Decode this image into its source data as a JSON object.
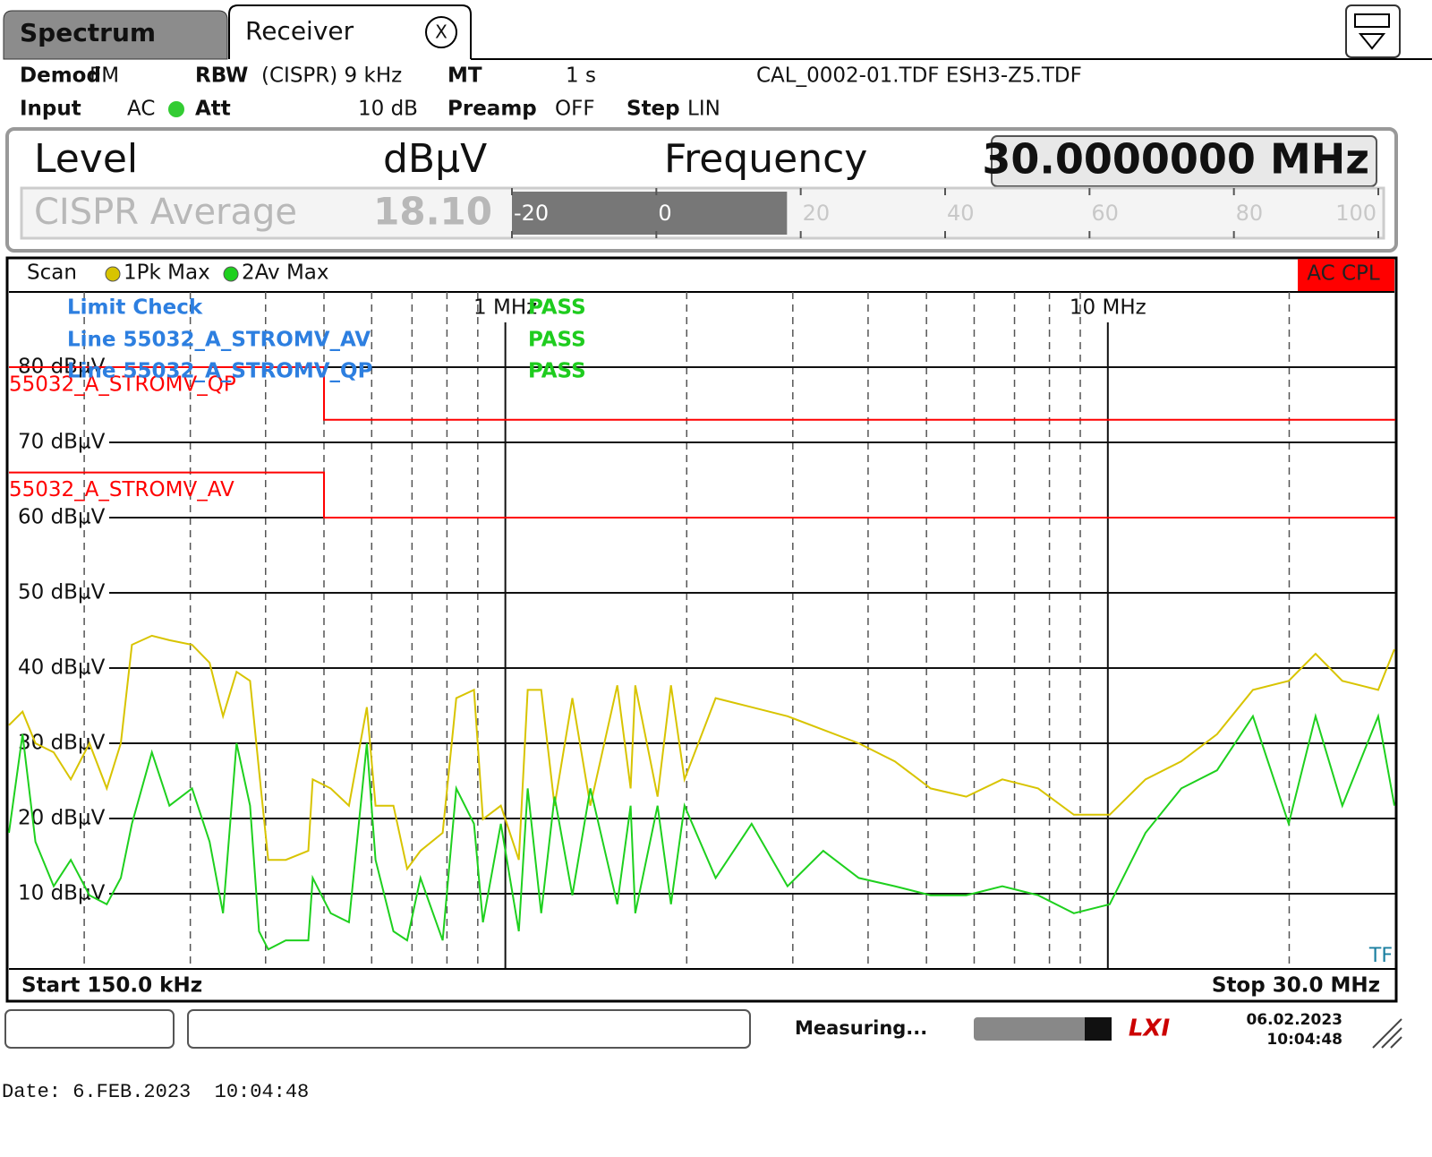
{
  "tabs": {
    "active": "Receiver",
    "inactive": "Spectrum",
    "close": "X"
  },
  "header": {
    "items": [
      {
        "key": "Demod",
        "value": "FM"
      },
      {
        "key": "RBW",
        "value": "(CISPR) 9 kHz"
      },
      {
        "key": "MT",
        "value": "1 s"
      },
      {
        "key": "Input",
        "value": "AC"
      },
      {
        "key": "Att",
        "value": "10 dB"
      },
      {
        "key": "Preamp",
        "value": "OFF"
      },
      {
        "key": "Step",
        "value": "LIN"
      }
    ],
    "files": "CAL_0002-01.TDF ESH3-Z5.TDF"
  },
  "level": {
    "title": "Level",
    "unit": "dBµV",
    "frequency_label": "Frequency",
    "frequency": "30.0000000 MHz",
    "detector": "CISPR Average",
    "value": 18.1,
    "value_label": "18.10",
    "bar_ticks": [
      -20,
      0,
      20,
      40,
      60,
      80,
      100
    ]
  },
  "chart_data": {
    "type": "line",
    "scan_label": "Scan",
    "badge": "AC CPL",
    "corner_label": "TF",
    "start_label": "Start 150.0 kHz",
    "stop_label": "Stop 30.0 MHz",
    "xlim": [
      0.15,
      30
    ],
    "log_x": true,
    "ylim": [
      0,
      90
    ],
    "xticks": [
      {
        "value": 1,
        "label": "1 MHz"
      },
      {
        "value": 10,
        "label": "10 MHz"
      }
    ],
    "x_minor_ticks": [
      0.2,
      0.3,
      0.4,
      0.5,
      0.6,
      0.7,
      0.8,
      0.9,
      2,
      3,
      4,
      5,
      6,
      7,
      8,
      9,
      20
    ],
    "yticks": [
      {
        "value": 10,
        "label": "10 dBµV"
      },
      {
        "value": 20,
        "label": "20 dBµV"
      },
      {
        "value": 30,
        "label": "30 dBµV"
      },
      {
        "value": 40,
        "label": "40 dBµV"
      },
      {
        "value": 50,
        "label": "50 dBµV"
      },
      {
        "value": 60,
        "label": "60 dBµV"
      },
      {
        "value": 70,
        "label": "70 dBµV"
      },
      {
        "value": 80,
        "label": "80 dBµV"
      }
    ],
    "x": [
      0.15,
      0.158,
      0.166,
      0.178,
      0.19,
      0.204,
      0.218,
      0.23,
      0.24,
      0.259,
      0.277,
      0.302,
      0.323,
      0.34,
      0.358,
      0.377,
      0.39,
      0.404,
      0.432,
      0.471,
      0.479,
      0.513,
      0.55,
      0.589,
      0.609,
      0.652,
      0.687,
      0.723,
      0.787,
      0.829,
      0.887,
      0.918,
      0.983,
      1.053,
      1.089,
      1.147,
      1.207,
      1.292,
      1.384,
      1.534,
      1.614,
      1.643,
      1.789,
      1.883,
      1.983,
      2.234,
      2.563,
      2.94,
      3.37,
      3.86,
      4.43,
      5.08,
      5.82,
      6.68,
      7.66,
      8.78,
      10.07,
      11.55,
      13.24,
      15.18,
      17.41,
      19.96,
      22.12,
      24.5,
      28.1,
      29.9
    ],
    "series": [
      {
        "name": "1Pk Max",
        "color": "#d8c400",
        "values": [
          32.4,
          34.2,
          30.0,
          28.8,
          25.2,
          30.0,
          24.0,
          30.0,
          43.1,
          44.3,
          43.7,
          43.1,
          40.7,
          33.6,
          39.5,
          38.3,
          26.4,
          14.5,
          14.5,
          15.7,
          25.2,
          24.0,
          21.7,
          34.8,
          21.7,
          21.7,
          13.3,
          15.7,
          18.1,
          36.0,
          37.1,
          19.9,
          21.7,
          14.5,
          37.1,
          37.1,
          21.7,
          36.0,
          21.7,
          37.7,
          24.0,
          37.7,
          22.9,
          37.7,
          25.2,
          36.0,
          34.8,
          33.6,
          31.8,
          30.0,
          27.6,
          24.0,
          22.9,
          25.2,
          24.0,
          20.5,
          20.5,
          25.2,
          27.6,
          31.2,
          37.1,
          38.3,
          41.9,
          38.3,
          37.1,
          42.5
        ]
      },
      {
        "name": "2Av Max",
        "color": "#1ed01e",
        "values": [
          18.1,
          31.2,
          16.9,
          11.0,
          14.5,
          9.8,
          8.6,
          12.1,
          19.3,
          28.8,
          21.7,
          24.0,
          16.9,
          7.4,
          30.0,
          21.7,
          5.0,
          2.6,
          3.8,
          3.8,
          12.1,
          7.4,
          6.2,
          30.0,
          14.5,
          5.0,
          3.8,
          12.1,
          3.8,
          24.0,
          19.3,
          6.2,
          19.3,
          5.0,
          24.0,
          7.4,
          22.9,
          9.8,
          24.0,
          8.6,
          21.7,
          7.4,
          21.7,
          8.6,
          21.7,
          12.1,
          19.3,
          11.0,
          15.7,
          12.1,
          11.0,
          9.8,
          9.8,
          11.0,
          9.8,
          7.4,
          8.6,
          18.1,
          24.0,
          26.4,
          33.6,
          19.3,
          33.6,
          21.7,
          33.6,
          21.7
        ]
      }
    ],
    "limit_lines": [
      {
        "name": "55032_A_STROMV_QP",
        "color": "#ff0000",
        "x": [
          0.15,
          0.5,
          0.5,
          30
        ],
        "values": [
          80,
          80,
          73,
          73
        ]
      },
      {
        "name": "55032_A_STROMV_AV",
        "color": "#ff0000",
        "x": [
          0.15,
          0.5,
          0.5,
          30
        ],
        "values": [
          66,
          66,
          60,
          60
        ]
      }
    ],
    "limit_check": {
      "title": "Limit Check",
      "result": "PASS",
      "lines": [
        {
          "name": "Line 55032_A_STROMV_AV",
          "result": "PASS"
        },
        {
          "name": "Line 55032_A_STROMV_QP",
          "result": "PASS"
        }
      ]
    }
  },
  "status": {
    "message": "Measuring...",
    "logo": "LXI",
    "date": "06.02.2023",
    "time": "10:04:48"
  },
  "footer": "Date: 6.FEB.2023  10:04:48"
}
